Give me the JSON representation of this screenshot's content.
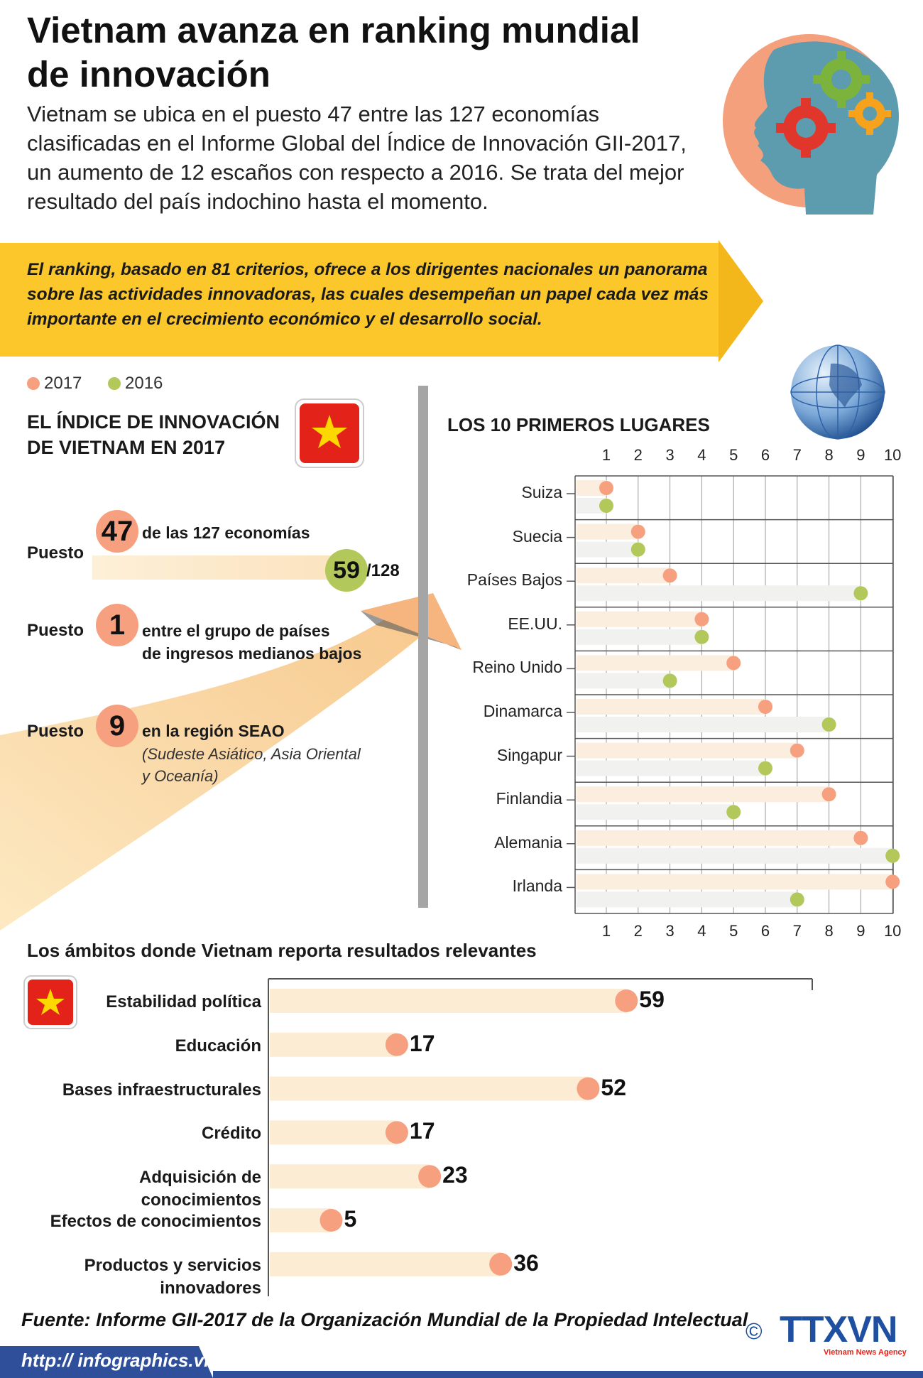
{
  "header": {
    "title": "Vietnam avanza en ranking mundial de innovación",
    "intro": "Vietnam se ubica en el puesto 47 entre las 127 economías clasificadas en el Informe Global del Índice de Innovación GII-2017, un aumento de 12 escaños con respecto a 2016. Se trata del mejor resultado del país indochino hasta el momento."
  },
  "banner": {
    "text": "El ranking, basado en 81 criterios, ofrece a los dirigentes nacionales un panorama sobre las actividades innovadoras, las cuales desempeñan un papel cada vez más importante  en el crecimiento económico y el desarrollo social."
  },
  "legend": [
    {
      "label": "2017",
      "color": "#f6a07f"
    },
    {
      "label": "2016",
      "color": "#b2c85a"
    }
  ],
  "vietnam_index": {
    "heading_line1": "EL ÍNDICE DE INNOVACIÓN",
    "heading_line2": "DE VIETNAM EN 2017",
    "puesto_label": "Puesto",
    "rank_2017": "47",
    "rank_2017_text": "de las 127 economías",
    "rank_2016": "59",
    "rank_2016_total": "/128",
    "rank_group": "1",
    "rank_group_text_line1": "entre el grupo de países",
    "rank_group_text_line2": "de ingresos medianos bajos",
    "rank_region": "9",
    "rank_region_text": "en la región SEAO",
    "rank_region_sub_line1": "(Sudeste Asiático, Asia Oriental",
    "rank_region_sub_line2": "y Oceanía)"
  },
  "chart_data": [
    {
      "type": "scatter",
      "title": "LOS 10 PRIMEROS LUGARES",
      "x_ticks": [
        "1",
        "2",
        "3",
        "4",
        "5",
        "6",
        "7",
        "8",
        "9",
        "10"
      ],
      "xlim": [
        1,
        10
      ],
      "categories": [
        "Suiza",
        "Suecia",
        "Países Bajos",
        "EE.UU.",
        "Reino Unido",
        "Dinamarca",
        "Singapur",
        "Finlandia",
        "Alemania",
        "Irlanda"
      ],
      "series": [
        {
          "name": "2017",
          "values": [
            1,
            2,
            3,
            4,
            5,
            6,
            7,
            8,
            9,
            10
          ]
        },
        {
          "name": "2016",
          "values": [
            1,
            2,
            9,
            4,
            3,
            8,
            6,
            5,
            10,
            7
          ]
        }
      ],
      "grid": true
    },
    {
      "type": "bar",
      "title": "Los ámbitos donde Vietnam reporta resultados relevantes",
      "categories": [
        "Estabilidad política",
        "Educación",
        "Bases infraestructurales",
        "Crédito",
        "Adquisición de conocimientos",
        "Efectos de conocimientos",
        "Productos y servicios innovadores"
      ],
      "values": [
        59,
        17,
        52,
        17,
        23,
        5,
        36
      ]
    }
  ],
  "source": "Fuente: Informe GII-2017 de la Organización Mundial de la Propiedad Intelectual",
  "logo": {
    "copyright": "©",
    "name": "TTXVN",
    "sub": "Vietnam News Agency"
  },
  "footer": {
    "url": "http:// infographics.vn"
  }
}
